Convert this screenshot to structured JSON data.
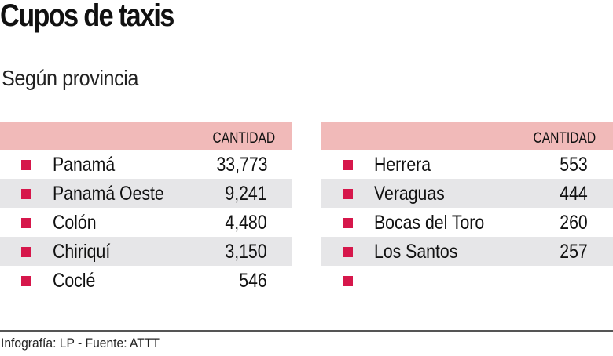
{
  "title": "Cupos de taxis",
  "subtitle": "Según provincia",
  "column_header": "CANTIDAD",
  "colors": {
    "header": "#f1bab9",
    "bullet": "#d6174b",
    "alt_row": "#e6e6e8"
  },
  "left_table": [
    {
      "name": "Panamá",
      "value": "33,773"
    },
    {
      "name": "Panamá Oeste",
      "value": "9,241"
    },
    {
      "name": "Colón",
      "value": "4,480"
    },
    {
      "name": "Chiriquí",
      "value": "3,150"
    },
    {
      "name": "Coclé",
      "value": "546"
    }
  ],
  "right_table": [
    {
      "name": "Herrera",
      "value": "553"
    },
    {
      "name": "Veraguas",
      "value": "444"
    },
    {
      "name": "Bocas del Toro",
      "value": "260"
    },
    {
      "name": "Los Santos",
      "value": "257"
    },
    {
      "name": "",
      "value": ""
    }
  ],
  "footer": "Infografía: LP - Fuente: ATTT"
}
